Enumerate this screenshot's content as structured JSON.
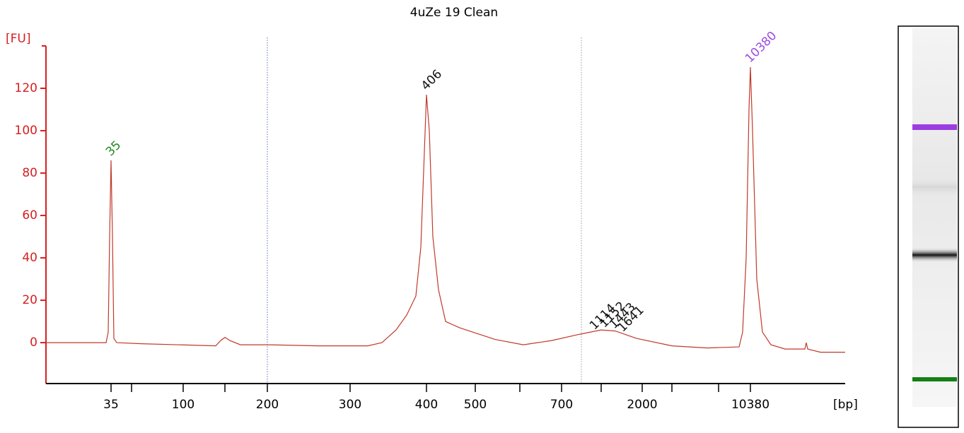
{
  "chart_data": {
    "type": "line",
    "title": "4uZe 19 Clean",
    "y_label": "[FU]",
    "x_label": "[bp]",
    "color": "#c0392b",
    "axis_color": "#d42020",
    "xlim": [
      17,
      73.5
    ],
    "ylim": [
      -19.3,
      140
    ],
    "yticks": [
      0,
      20,
      40,
      60,
      80,
      100,
      120
    ],
    "xticks": [
      {
        "value": 21.6,
        "label": "35"
      },
      {
        "value": 23.05,
        "label": null
      },
      {
        "value": 26.7,
        "label": "100"
      },
      {
        "value": 29.65,
        "label": null
      },
      {
        "value": 32.65,
        "label": "200"
      },
      {
        "value": 38.5,
        "label": "300"
      },
      {
        "value": 43.9,
        "label": "400"
      },
      {
        "value": 47.35,
        "label": "500"
      },
      {
        "value": 50.5,
        "label": null
      },
      {
        "value": 53.45,
        "label": "700"
      },
      {
        "value": 56.25,
        "label": null
      },
      {
        "value": 59.15,
        "label": "2000"
      },
      {
        "value": 61.25,
        "label": null
      },
      {
        "value": 64.55,
        "label": null
      },
      {
        "value": 66.8,
        "label": "10380"
      }
    ],
    "vlines": [
      {
        "value": 32.65,
        "color": "#5a6fb0"
      },
      {
        "value": 54.85,
        "color": "#999999"
      }
    ],
    "x": [
      17,
      21,
      21.25,
      21.4,
      21.5,
      21.6,
      21.7,
      21.8,
      22,
      23.75,
      29,
      29.35,
      29.65,
      30,
      30.75,
      32.65,
      36.25,
      39.75,
      40.75,
      41.75,
      42.5,
      43.15,
      43.5,
      43.75,
      43.9,
      44.1,
      44.35,
      44.75,
      45.25,
      46.25,
      48.75,
      50.75,
      52.75,
      54.75,
      56.25,
      57.25,
      58.75,
      61.25,
      63.75,
      66,
      66.25,
      66.5,
      66.7,
      66.8,
      66.95,
      67.25,
      67.65,
      68.25,
      69.25,
      70.65,
      70.75,
      70.85,
      71.75,
      73.5
    ],
    "values": [
      0,
      0,
      0,
      5,
      50,
      86,
      50,
      2,
      0,
      -0.5,
      -1.5,
      1,
      2.5,
      1,
      -1,
      -1,
      -1.5,
      -1.5,
      0,
      6,
      13,
      22,
      45,
      90,
      117,
      100,
      50,
      25,
      10,
      7,
      1.5,
      -1,
      1,
      4,
      6,
      5.5,
      2,
      -1.5,
      -2.5,
      -2,
      5,
      40,
      110,
      130,
      100,
      30,
      5,
      -1,
      -3,
      -3,
      0,
      -3,
      -4.5,
      -4.5
    ],
    "annotations": [
      {
        "text": "35",
        "x": 21.6,
        "y": 89,
        "color": "#1e8a1e"
      },
      {
        "text": "406",
        "x": 43.9,
        "y": 120,
        "color": "#111111"
      },
      {
        "text": "10380",
        "x": 66.8,
        "y": 133,
        "color": "#9b4de0"
      },
      {
        "text": "1114",
        "x": 55.8,
        "y": 7,
        "color": "#111111"
      },
      {
        "text": "1152",
        "x": 56.5,
        "y": 8,
        "color": "#111111"
      },
      {
        "text": "1443",
        "x": 57.2,
        "y": 7.5,
        "color": "#111111"
      },
      {
        "text": "1641",
        "x": 57.8,
        "y": 6,
        "color": "#111111"
      }
    ]
  }
}
